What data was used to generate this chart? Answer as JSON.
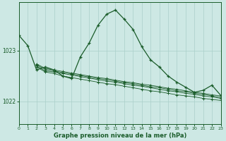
{
  "title": "Graphe pression niveau de la mer (hPa)",
  "bg_color": "#cde8e4",
  "grid_color": "#aacfc9",
  "line_color": "#1a5c2a",
  "ylim": [
    1021.55,
    1023.95
  ],
  "xlim": [
    0,
    23
  ],
  "yticks": [
    1022,
    1023
  ],
  "xticks": [
    0,
    1,
    2,
    3,
    4,
    5,
    6,
    7,
    8,
    9,
    10,
    11,
    12,
    13,
    14,
    15,
    16,
    17,
    18,
    19,
    20,
    21,
    22,
    23
  ],
  "line1_x": [
    0,
    1,
    2,
    3,
    4,
    5,
    6,
    7,
    8,
    9,
    10,
    11,
    12,
    13,
    14,
    15,
    16,
    17,
    18,
    19,
    20,
    21,
    22,
    23
  ],
  "line1_y": [
    1023.3,
    1023.1,
    1022.62,
    1022.68,
    1022.62,
    1022.5,
    1022.45,
    1022.88,
    1023.15,
    1023.5,
    1023.72,
    1023.8,
    1023.62,
    1023.42,
    1023.08,
    1022.82,
    1022.68,
    1022.5,
    1022.38,
    1022.28,
    1022.18,
    1022.22,
    1022.32,
    1022.12
  ],
  "line2_x": [
    2,
    3,
    4,
    5,
    6,
    7,
    8,
    9,
    10,
    11,
    12,
    13,
    14,
    15,
    16,
    17,
    18,
    19,
    20,
    21,
    22,
    23
  ],
  "line2_y": [
    1022.68,
    1022.58,
    1022.55,
    1022.5,
    1022.47,
    1022.44,
    1022.41,
    1022.38,
    1022.35,
    1022.33,
    1022.3,
    1022.27,
    1022.24,
    1022.21,
    1022.19,
    1022.16,
    1022.13,
    1022.11,
    1022.09,
    1022.06,
    1022.04,
    1022.02
  ],
  "line3_x": [
    2,
    3,
    4,
    5,
    6,
    7,
    8,
    9,
    10,
    11,
    12,
    13,
    14,
    15,
    16,
    17,
    18,
    19,
    20,
    21,
    22,
    23
  ],
  "line3_y": [
    1022.7,
    1022.6,
    1022.58,
    1022.55,
    1022.52,
    1022.49,
    1022.46,
    1022.43,
    1022.4,
    1022.38,
    1022.35,
    1022.32,
    1022.3,
    1022.27,
    1022.24,
    1022.21,
    1022.19,
    1022.16,
    1022.14,
    1022.11,
    1022.09,
    1022.06
  ],
  "line4_x": [
    2,
    3,
    4,
    5,
    6,
    7,
    8,
    9,
    10,
    11,
    12,
    13,
    14,
    15,
    16,
    17,
    18,
    19,
    20,
    21,
    22,
    23
  ],
  "line4_y": [
    1022.72,
    1022.63,
    1022.6,
    1022.57,
    1022.54,
    1022.51,
    1022.48,
    1022.45,
    1022.43,
    1022.4,
    1022.37,
    1022.35,
    1022.32,
    1022.29,
    1022.27,
    1022.24,
    1022.21,
    1022.19,
    1022.16,
    1022.14,
    1022.11,
    1022.08
  ],
  "line5_x": [
    2,
    3,
    4,
    5,
    6,
    7,
    8,
    9,
    10,
    11,
    12,
    13,
    14,
    15,
    16,
    17,
    18,
    19,
    20,
    21,
    22,
    23
  ],
  "line5_y": [
    1022.74,
    1022.65,
    1022.62,
    1022.59,
    1022.56,
    1022.53,
    1022.5,
    1022.47,
    1022.45,
    1022.42,
    1022.39,
    1022.37,
    1022.34,
    1022.32,
    1022.29,
    1022.26,
    1022.24,
    1022.21,
    1022.18,
    1022.16,
    1022.13,
    1022.11
  ]
}
